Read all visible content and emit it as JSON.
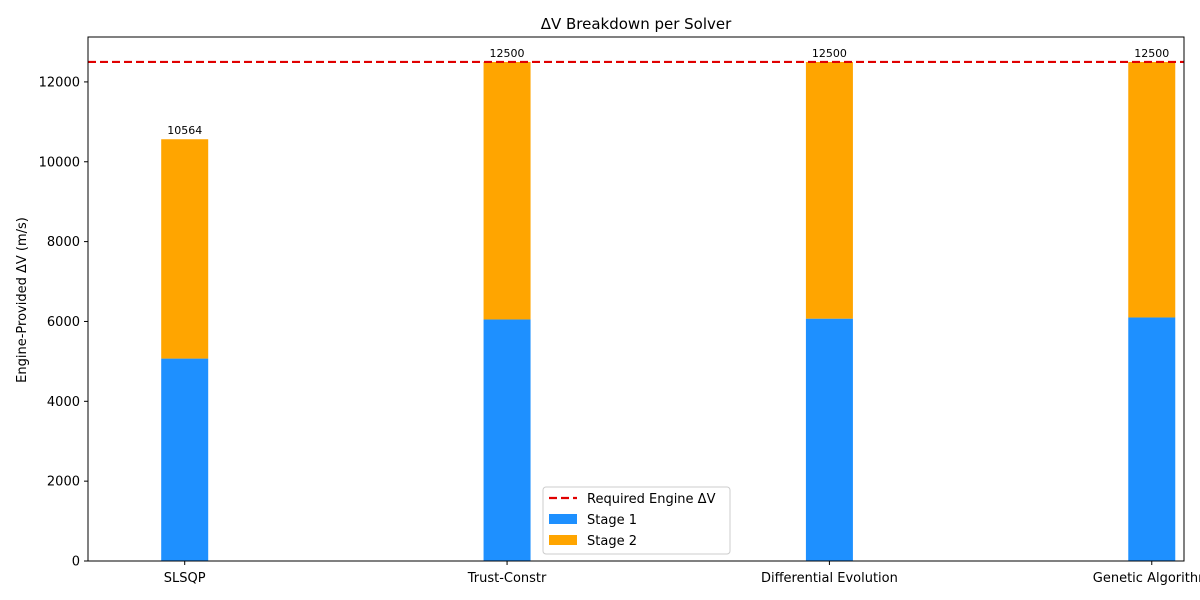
{
  "chart_data": {
    "type": "bar",
    "stacked": true,
    "title": "ΔV Breakdown per Solver",
    "xlabel": "",
    "ylabel": "Engine-Provided ΔV (m/s)",
    "categories": [
      "SLSQP",
      "Trust-Constr",
      "Differential Evolution",
      "Genetic Algorithm"
    ],
    "series": [
      {
        "name": "Stage 1",
        "color": "#1e90ff",
        "values": [
          5070,
          6050,
          6070,
          6100
        ]
      },
      {
        "name": "Stage 2",
        "color": "#ffa500",
        "values": [
          5494,
          6450,
          6430,
          6400
        ]
      }
    ],
    "totals_labels": [
      "10564",
      "12500",
      "12500",
      "12500"
    ],
    "reference_line": {
      "name": "Required Engine ΔV",
      "value": 12500,
      "color": "#e00000",
      "style": "dashed"
    },
    "ylim": [
      0,
      13125
    ],
    "yticks": [
      0,
      2000,
      4000,
      6000,
      8000,
      10000,
      12000
    ],
    "grid": false,
    "legend_position": "bottom-center"
  }
}
